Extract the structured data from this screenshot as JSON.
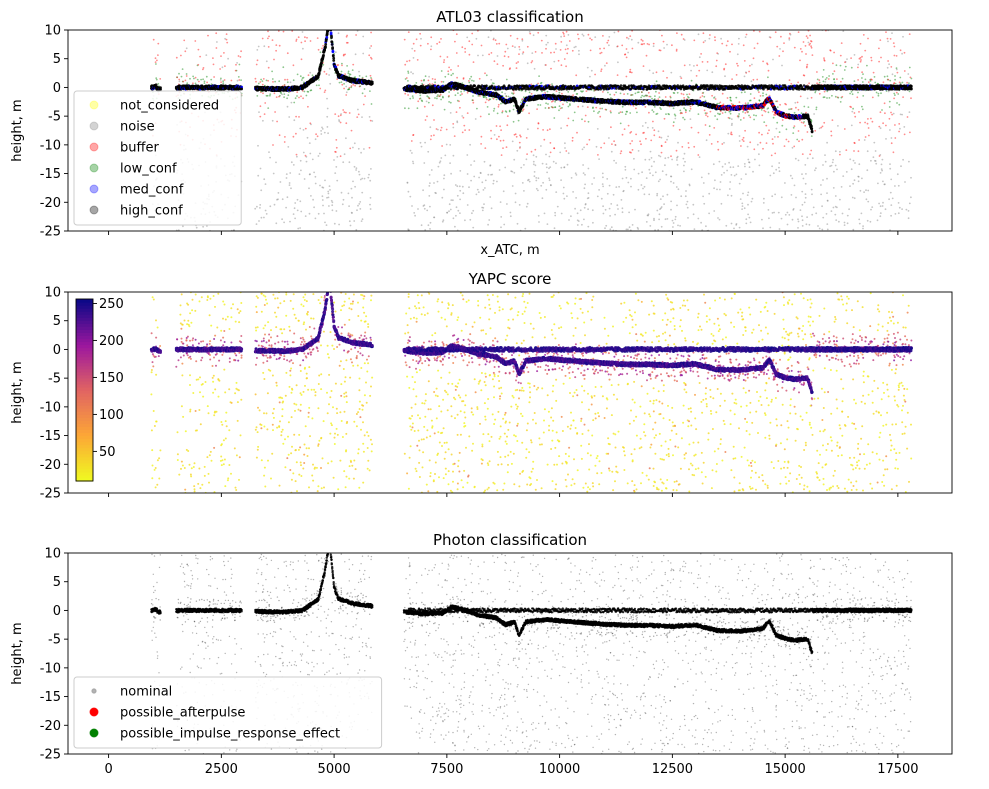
{
  "chart_data": [
    {
      "type": "scatter",
      "title": "ATL03 classification",
      "xlabel": "x_ATC, m",
      "ylabel": "height, m",
      "xlim": [
        -900,
        18700
      ],
      "ylim": [
        -25,
        10
      ],
      "yticks": [
        -25,
        -20,
        -15,
        -10,
        -5,
        0,
        5,
        10
      ],
      "xticks": [
        0,
        2500,
        5000,
        7500,
        10000,
        12500,
        15000,
        17500
      ],
      "show_xticklabels": false,
      "legend": {
        "position": "lower-left",
        "entries": [
          {
            "label": "not_considered",
            "color": "#ffff00"
          },
          {
            "label": "noise",
            "color": "#808080"
          },
          {
            "label": "buffer",
            "color": "#ff0000"
          },
          {
            "label": "low_conf",
            "color": "#008000"
          },
          {
            "label": "med_conf",
            "color": "#0000ff"
          },
          {
            "label": "high_conf",
            "color": "#000000"
          }
        ]
      },
      "surface": [
        [
          1000,
          0
        ],
        [
          1050,
          0.2
        ],
        [
          1100,
          -0.3
        ],
        [
          1600,
          0
        ],
        [
          2900,
          0
        ],
        [
          3300,
          -0.2
        ],
        [
          3900,
          -0.3
        ],
        [
          4300,
          0
        ],
        [
          4650,
          2
        ],
        [
          4800,
          7
        ],
        [
          4900,
          12
        ],
        [
          5000,
          4
        ],
        [
          5100,
          2
        ],
        [
          5200,
          1.8
        ],
        [
          5400,
          1.2
        ],
        [
          5800,
          0.8
        ],
        [
          6600,
          -0.3
        ],
        [
          7000,
          -0.6
        ],
        [
          7400,
          -0.5
        ],
        [
          7600,
          0.6
        ],
        [
          7800,
          0.3
        ],
        [
          8200,
          -0.8
        ],
        [
          8600,
          -1.3
        ],
        [
          8800,
          -2.5
        ],
        [
          9000,
          -2.0
        ],
        [
          9100,
          -4.3
        ],
        [
          9250,
          -2.0
        ],
        [
          9700,
          -1.6
        ],
        [
          10300,
          -2.0
        ],
        [
          11000,
          -2.4
        ],
        [
          11500,
          -2.6
        ],
        [
          12000,
          -2.6
        ],
        [
          12500,
          -2.8
        ],
        [
          13000,
          -2.5
        ],
        [
          13500,
          -3.5
        ],
        [
          14000,
          -3.6
        ],
        [
          14500,
          -3.2
        ],
        [
          14650,
          -1.8
        ],
        [
          14800,
          -4.3
        ],
        [
          15000,
          -4.9
        ],
        [
          15200,
          -5.2
        ],
        [
          15500,
          -5.0
        ],
        [
          15600,
          -7.5
        ]
      ],
      "segments": [
        [
          950,
          1150
        ],
        [
          1500,
          2950
        ],
        [
          3250,
          5850
        ],
        [
          6550,
          17800
        ]
      ]
    },
    {
      "type": "scatter",
      "title": "YAPC score",
      "xlabel": "",
      "ylabel": "height, m",
      "xlim": [
        -900,
        18700
      ],
      "ylim": [
        -25,
        10
      ],
      "yticks": [
        -25,
        -20,
        -15,
        -10,
        -5,
        0,
        5,
        10
      ],
      "xticks": [
        0,
        2500,
        5000,
        7500,
        10000,
        12500,
        15000,
        17500
      ],
      "show_xticklabels": false,
      "colorbar": {
        "min": 10,
        "max": 256,
        "ticks": [
          50,
          100,
          150,
          200,
          250
        ],
        "position": "upper-left",
        "colormap": "plasma_r"
      }
    },
    {
      "type": "scatter",
      "title": "Photon classification",
      "xlabel": "",
      "ylabel": "height, m",
      "xlim": [
        -900,
        18700
      ],
      "ylim": [
        -25,
        10
      ],
      "yticks": [
        -25,
        -20,
        -15,
        -10,
        -5,
        0,
        5,
        10
      ],
      "xticks": [
        0,
        2500,
        5000,
        7500,
        10000,
        12500,
        15000,
        17500
      ],
      "show_xticklabels": true,
      "legend": {
        "position": "lower-left",
        "entries": [
          {
            "label": "nominal",
            "color": "#808080"
          },
          {
            "label": "possible_afterpulse",
            "color": "#ff0000"
          },
          {
            "label": "possible_impulse_response_effect",
            "color": "#008000"
          }
        ]
      }
    }
  ]
}
